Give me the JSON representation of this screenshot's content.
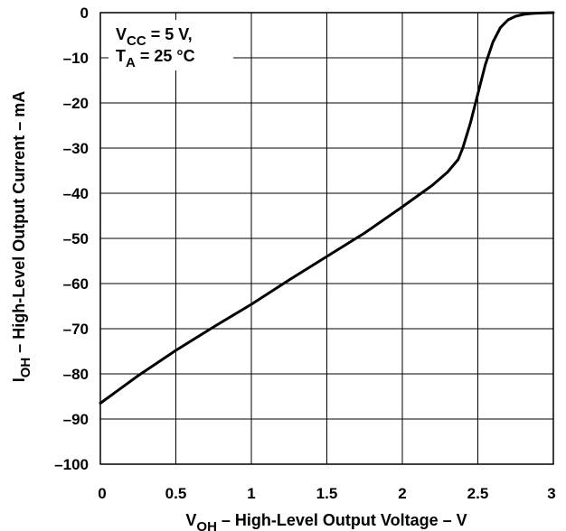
{
  "chart_data": {
    "type": "line",
    "title": "",
    "xlabel": {
      "main": "V",
      "sub": "OH",
      "rest": " – High-Level Output Voltage – V"
    },
    "ylabel": {
      "main": "I",
      "sub": "OH",
      "rest": " – High-Level Output Current – mA"
    },
    "xlim": [
      0,
      3
    ],
    "ylim": [
      -100,
      0
    ],
    "x_ticks": [
      0,
      0.5,
      1,
      1.5,
      2,
      2.5,
      3
    ],
    "x_tick_labels": [
      "0",
      "0.5",
      "1",
      "1.5",
      "2",
      "2.5",
      "3"
    ],
    "y_ticks": [
      0,
      -10,
      -20,
      -30,
      -40,
      -50,
      -60,
      -70,
      -80,
      -90,
      -100
    ],
    "y_tick_labels": [
      "0",
      "–10",
      "–20",
      "–30",
      "–40",
      "–50",
      "–60",
      "–70",
      "–80",
      "–90",
      "–100"
    ],
    "grid": true,
    "annotation": {
      "line1": {
        "main": "V",
        "sub": "CC",
        "rest": " = 5 V,"
      },
      "line2": {
        "main": "T",
        "sub": "A",
        "rest": " = 25 °C"
      }
    },
    "series": [
      {
        "x": [
          0,
          0.25,
          0.5,
          0.75,
          1.0,
          1.25,
          1.5,
          1.75,
          2.0,
          2.2,
          2.3,
          2.37,
          2.4,
          2.45,
          2.5,
          2.55,
          2.6,
          2.65,
          2.7,
          2.75,
          2.8,
          2.85,
          2.9,
          2.95,
          3.0
        ],
        "y": [
          -86.5,
          -80.4,
          -74.8,
          -69.6,
          -64.6,
          -59.2,
          -54.0,
          -48.8,
          -43.0,
          -38.2,
          -35.3,
          -32.5,
          -30.0,
          -24.5,
          -18.0,
          -11.5,
          -6.5,
          -3.3,
          -1.6,
          -0.8,
          -0.4,
          -0.2,
          -0.1,
          -0.05,
          0
        ]
      }
    ]
  }
}
